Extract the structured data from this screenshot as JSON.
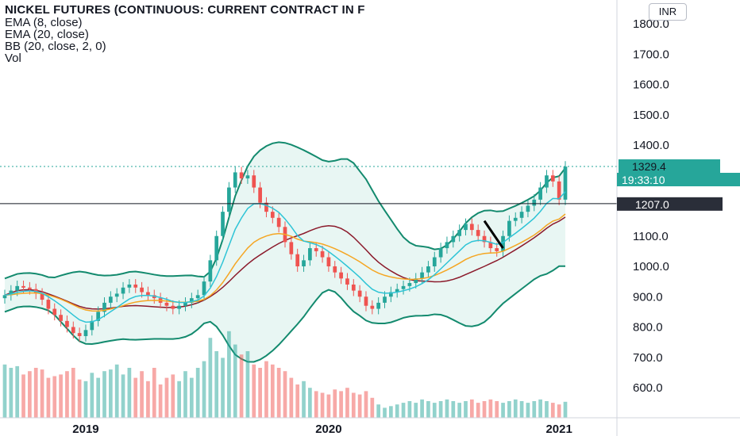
{
  "legend": {
    "title": "NICKEL FUTURES (CONTINUOUS: CURRENT CONTRACT IN F",
    "indicators": [
      "EMA (8, close)",
      "EMA (20, close)",
      "BB (20, close, 2, 0)",
      "Vol"
    ]
  },
  "currency_button": "INR",
  "colors": {
    "up": "#26a69a",
    "down": "#ef5350",
    "ema8": "#2ec4d6",
    "ema20": "#f5a623",
    "bb_basis": "#8b1a2b",
    "bb_band": "#138a6e",
    "bb_fill": "#e8f6f3",
    "price_tag": "#26a69a",
    "level_tag": "#2a2e39"
  },
  "chart_data": {
    "type": "candlestick",
    "title": "NICKEL FUTURES (CONTINUOUS: CURRENT CONTRACT IN F",
    "currency": "INR",
    "ylim": [
      500,
      1850
    ],
    "y_ticks": [
      "1800.0",
      "1700.0",
      "1600.0",
      "1500.0",
      "1400.0",
      "1100.0",
      "1000.0",
      "900.0",
      "800.0",
      "700.0",
      "600.0"
    ],
    "x_ticks": [
      {
        "label": "2019",
        "index": 13
      },
      {
        "label": "2020",
        "index": 52
      },
      {
        "label": "2021",
        "index": 89
      }
    ],
    "last_price": {
      "label": "1329.4",
      "value": 1329.4
    },
    "countdown": "19:33:10",
    "horizontal_level": {
      "label": "1207.0",
      "value": 1207
    },
    "closes": [
      905,
      920,
      935,
      930,
      925,
      910,
      890,
      860,
      840,
      820,
      800,
      780,
      770,
      790,
      820,
      850,
      880,
      900,
      910,
      930,
      940,
      930,
      915,
      905,
      895,
      880,
      870,
      860,
      870,
      880,
      895,
      905,
      950,
      1020,
      1100,
      1180,
      1260,
      1310,
      1290,
      1300,
      1260,
      1210,
      1180,
      1160,
      1130,
      1080,
      1040,
      1000,
      1020,
      1060,
      1050,
      1030,
      1000,
      980,
      960,
      940,
      920,
      900,
      870,
      860,
      880,
      900,
      915,
      925,
      935,
      945,
      960,
      980,
      1000,
      1030,
      1060,
      1080,
      1100,
      1120,
      1140,
      1120,
      1100,
      1080,
      1060,
      1050,
      1100,
      1150,
      1160,
      1180,
      1200,
      1220,
      1260,
      1300,
      1280,
      1220,
      1329
    ],
    "volumes": [
      160,
      150,
      155,
      130,
      140,
      150,
      145,
      120,
      125,
      130,
      140,
      150,
      115,
      110,
      135,
      120,
      140,
      145,
      160,
      130,
      150,
      120,
      140,
      110,
      150,
      100,
      120,
      130,
      110,
      140,
      120,
      150,
      170,
      240,
      200,
      180,
      260,
      220,
      190,
      200,
      160,
      150,
      170,
      160,
      150,
      140,
      120,
      100,
      110,
      90,
      80,
      75,
      70,
      85,
      80,
      90,
      75,
      70,
      80,
      60,
      40,
      30,
      35,
      40,
      45,
      50,
      45,
      55,
      50,
      45,
      50,
      55,
      50,
      45,
      50,
      55,
      45,
      50,
      55,
      50,
      45,
      50,
      55,
      50,
      45,
      50,
      55,
      50,
      45,
      40,
      48
    ]
  }
}
